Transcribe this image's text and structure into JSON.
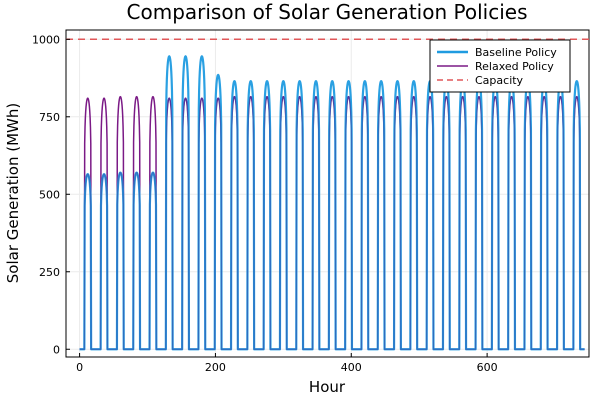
{
  "chart_data": {
    "type": "line",
    "title": "Comparison of Solar Generation Policies",
    "xlabel": "Hour",
    "ylabel": "Solar Generation (MWh)",
    "xlim": [
      -20,
      750
    ],
    "ylim": [
      -25,
      1030
    ],
    "xticks": [
      0,
      200,
      400,
      600
    ],
    "yticks": [
      0,
      250,
      500,
      750,
      1000
    ],
    "grid": true,
    "legend_position": "top-right",
    "days": 31,
    "hours_per_day": 24,
    "daylight_start_hour": 7,
    "daylight_end_hour": 17,
    "series": [
      {
        "name": "Baseline Policy",
        "color": "#1f9be0",
        "style": "solid",
        "daily_peaks": [
          565,
          565,
          570,
          570,
          570,
          945,
          945,
          945,
          885,
          865,
          865,
          865,
          865,
          865,
          865,
          865,
          865,
          865,
          865,
          865,
          865,
          865,
          865,
          865,
          865,
          865,
          865,
          865,
          865,
          865,
          865
        ]
      },
      {
        "name": "Relaxed Policy",
        "color": "#7b1a86",
        "style": "solid",
        "daily_peaks": [
          810,
          810,
          815,
          815,
          815,
          810,
          810,
          810,
          810,
          815,
          815,
          815,
          815,
          815,
          815,
          815,
          815,
          815,
          815,
          815,
          815,
          815,
          815,
          815,
          815,
          815,
          815,
          815,
          815,
          815,
          815
        ]
      },
      {
        "name": "Capacity",
        "color": "#e15759",
        "style": "dashed",
        "value": 1000
      }
    ]
  }
}
